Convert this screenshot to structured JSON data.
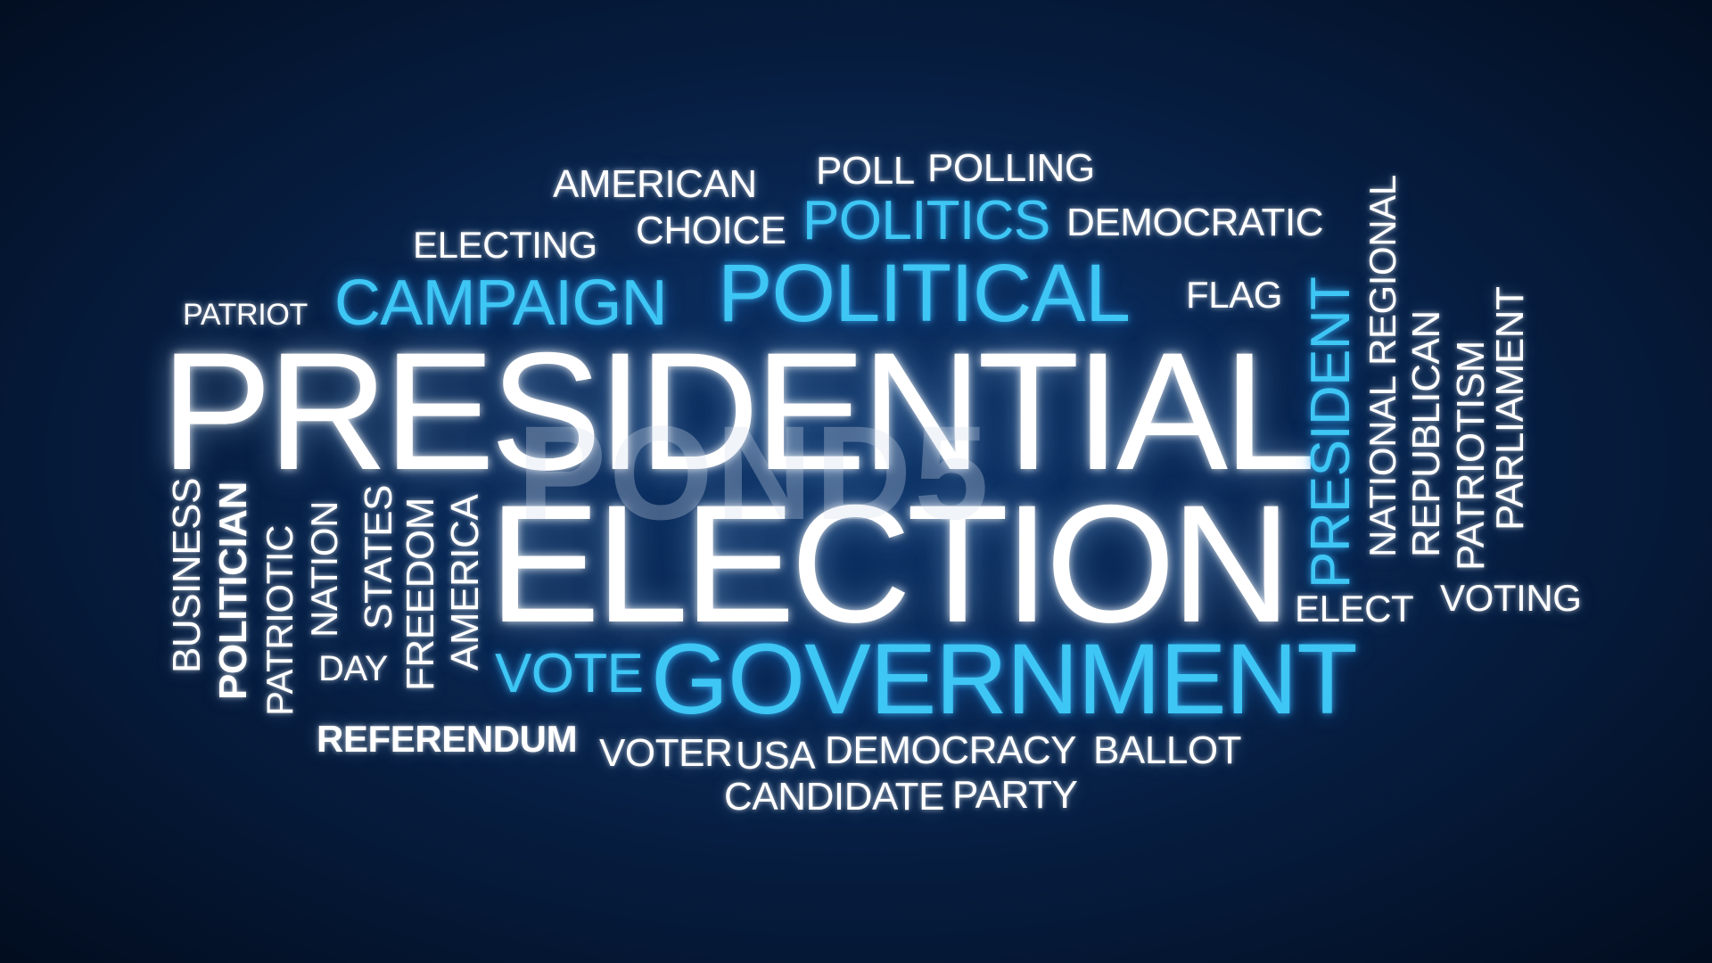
{
  "words": {
    "american": "AMERICAN",
    "poll": "POLL",
    "polling": "POLLING",
    "electing": "ELECTING",
    "choice": "CHOICE",
    "politics": "POLITICS",
    "democratic": "DEMOCRATIC",
    "patriot": "PATRIOT",
    "campaign": "CAMPAIGN",
    "political": "POLITICAL",
    "flag": "FLAG",
    "presidential": "PRESIDENTIAL",
    "election": "ELECTION",
    "president": "PRESIDENT",
    "national": "NATIONAL",
    "regional": "REGIONAL",
    "republican": "REPUBLICAN",
    "patriotism": "PATRIOTISM",
    "parliament": "PARLIAMENT",
    "business": "BUSINESS",
    "politician": "POLITICIAN",
    "patriotic": "PATRIOTIC",
    "nation": "NATION",
    "day": "DAY",
    "states": "STATES",
    "freedom": "FREEDOM",
    "america": "AMERICA",
    "elect": "ELECT",
    "voting": "VOTING",
    "vote": "VOTE",
    "government": "GOVERNMENT",
    "referendum": "REFERENDUM",
    "voter": "VOTER",
    "usa": "USA",
    "democracy": "DEMOCRACY",
    "ballot": "BALLOT",
    "candidate": "CANDIDATE",
    "party": "PARTY"
  },
  "watermark": "POND5",
  "colors": {
    "background": "#0a2a58",
    "white_word": "#ffffff",
    "blue_word": "#3ec6f4"
  }
}
